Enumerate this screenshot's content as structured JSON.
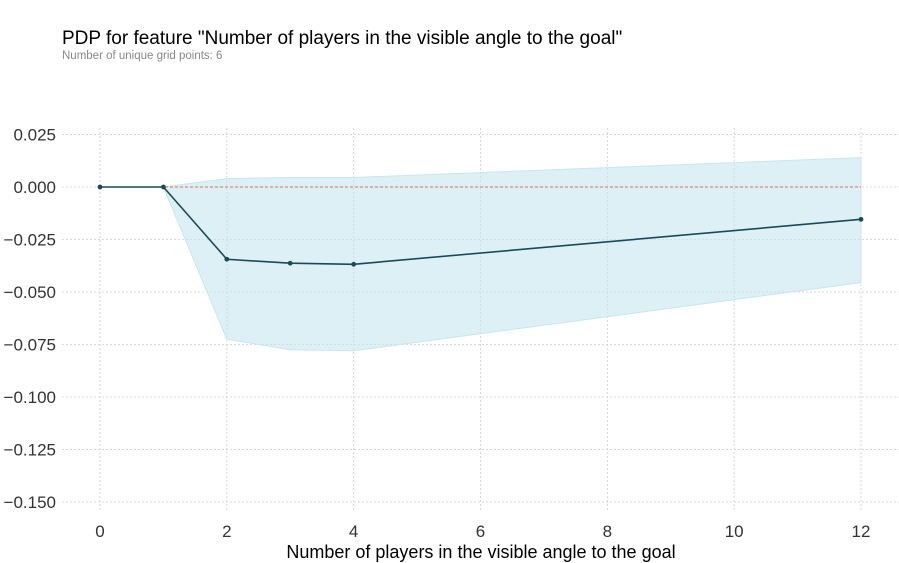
{
  "chart_data": {
    "type": "line",
    "title": "PDP for feature \"Number of players in the visible angle to the goal\"",
    "subtitle": "Number of unique grid points: 6",
    "xlabel": "Number of players in the visible angle to the goal",
    "ylabel": "",
    "xlim": [
      -0.6,
      12.6
    ],
    "ylim": [
      -0.155,
      0.028
    ],
    "xticks": [
      0,
      2,
      4,
      6,
      8,
      10,
      12
    ],
    "xtick_labels": [
      "0",
      "2",
      "4",
      "6",
      "8",
      "10",
      "12"
    ],
    "yticks": [
      0.025,
      0.0,
      -0.025,
      -0.05,
      -0.075,
      -0.1,
      -0.125,
      -0.15
    ],
    "ytick_labels": [
      "0.025",
      "0.000",
      "−0.025",
      "−0.050",
      "−0.075",
      "−0.100",
      "−0.125",
      "−0.150"
    ],
    "grid": true,
    "x": [
      0,
      1,
      2,
      3,
      4,
      12
    ],
    "series": [
      {
        "values": [
          0.0,
          0.0,
          -0.0344,
          -0.0363,
          -0.0368,
          -0.0154
        ]
      }
    ],
    "band_upper": [
      0.0,
      0.0,
      0.004,
      0.0045,
      0.0045,
      0.014
    ],
    "band_lower": [
      0.0,
      0.0,
      -0.0725,
      -0.0775,
      -0.078,
      -0.0455
    ],
    "reference_line": 0.0,
    "colors": {
      "line": "#1a4a5a",
      "band": "#c6e6f0",
      "reference": "#e07060",
      "grid": "#cccccc"
    }
  }
}
